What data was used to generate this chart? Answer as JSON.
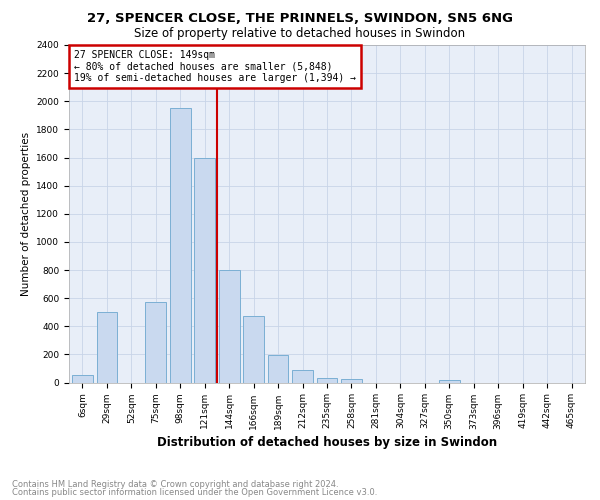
{
  "title": "27, SPENCER CLOSE, THE PRINNELS, SWINDON, SN5 6NG",
  "subtitle": "Size of property relative to detached houses in Swindon",
  "xlabel": "Distribution of detached houses by size in Swindon",
  "ylabel": "Number of detached properties",
  "categories": [
    "6sqm",
    "29sqm",
    "52sqm",
    "75sqm",
    "98sqm",
    "121sqm",
    "144sqm",
    "166sqm",
    "189sqm",
    "212sqm",
    "235sqm",
    "258sqm",
    "281sqm",
    "304sqm",
    "327sqm",
    "350sqm",
    "373sqm",
    "396sqm",
    "419sqm",
    "442sqm",
    "465sqm"
  ],
  "values": [
    50,
    500,
    0,
    575,
    1950,
    1600,
    800,
    475,
    195,
    90,
    35,
    25,
    0,
    0,
    0,
    20,
    0,
    0,
    0,
    0,
    0
  ],
  "bar_color": "#c9d9ef",
  "bar_edge_color": "#7bafd4",
  "vline_x": 6.5,
  "vline_color": "#cc0000",
  "annotation_title": "27 SPENCER CLOSE: 149sqm",
  "annotation_line1": "← 80% of detached houses are smaller (5,848)",
  "annotation_line2": "19% of semi-detached houses are larger (1,394) →",
  "annotation_box_color": "#cc0000",
  "ylim": [
    0,
    2400
  ],
  "yticks": [
    0,
    200,
    400,
    600,
    800,
    1000,
    1200,
    1400,
    1600,
    1800,
    2000,
    2200,
    2400
  ],
  "grid_color": "#c8d4e8",
  "bg_color": "#e8eef8",
  "footer_line1": "Contains HM Land Registry data © Crown copyright and database right 2024.",
  "footer_line2": "Contains public sector information licensed under the Open Government Licence v3.0.",
  "title_fontsize": 9.5,
  "subtitle_fontsize": 8.5,
  "ylabel_fontsize": 7.5,
  "xlabel_fontsize": 8.5,
  "tick_fontsize": 6.5,
  "ann_fontsize": 7.0,
  "footer_fontsize": 6.0
}
